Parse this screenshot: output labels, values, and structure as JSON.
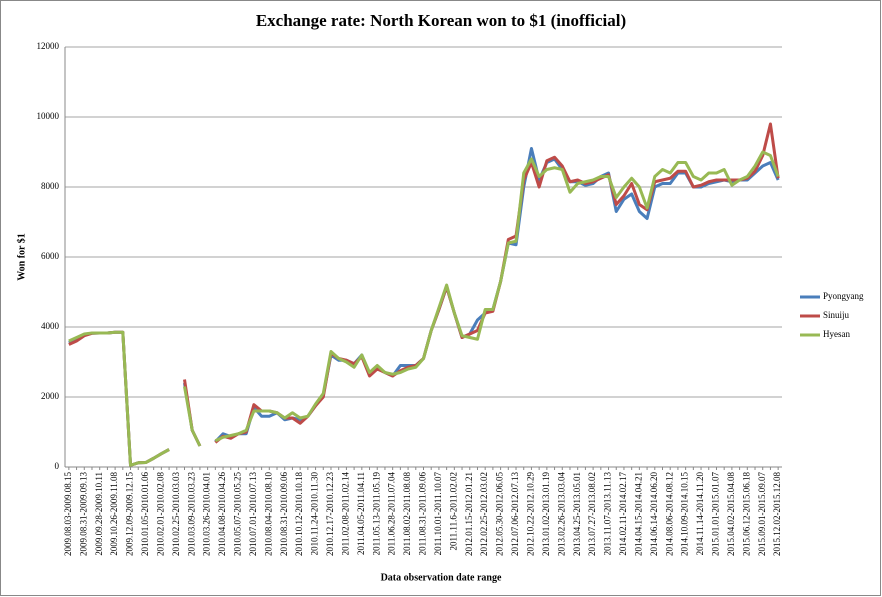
{
  "chart_data": {
    "type": "line",
    "title": "Exchange rate: North Korean won to $1 (inofficial)",
    "x_label": "Data observation date range",
    "y_label": "Won for $1",
    "categories": [
      "2009.08.03-2009.08.15",
      null,
      "2009.08.31-2009.09.13",
      null,
      "2009.09.28-2009.10.11",
      null,
      "2009.10.26-2009.11.08",
      null,
      "2009.12.09-2009.12.15",
      null,
      "2010.01.05-2010.01.06",
      null,
      "2010.02.01-2010.02.08",
      null,
      "2010.02.25-2010.03.03",
      null,
      "2010.03.09-2010.03.23",
      null,
      "2010.03.26-2010.04.01",
      null,
      "2010.04.08-2010.04.26",
      null,
      "2010.05.07-2010.05.25",
      null,
      "2010.07.01-2010.07.13",
      null,
      "2010.08.04-2010.08.10",
      null,
      "2010.08.31-2010.09.06",
      null,
      "2010.10.12-2010.10.18",
      null,
      "2010.11.24-2010.11.30",
      null,
      "2010.12.17-2010.12.23",
      null,
      "2011.02.08-2011.02.14",
      null,
      "2011.04.05-2011.04.11",
      null,
      "2011.05.13-2011.05.19",
      null,
      "2011.06.28-2011.07.04",
      null,
      "2011.08.02-2011.08.08",
      null,
      "2011.08.31-2011.09.06",
      null,
      "2011.10.01-2011.10.07",
      null,
      "2011.11.6-2011.02.02",
      null,
      "2012.01.15-2012.01.21",
      null,
      "2012.02.25-2012.03.02",
      null,
      "2012.05.30-2012.06.05",
      null,
      "2012.07.06-2012.07.13",
      null,
      "2012.10.22-2012.10.29",
      null,
      "2013.01.02-2013.01.19",
      null,
      "2013.02.26-2013.03.04",
      null,
      "2013.04.25-2013.05.01",
      null,
      "2013.07.27-2013.08.02",
      null,
      "2013.11.07-2013.11.13",
      null,
      "2014.02.11-2014.02.17",
      null,
      "2014.04.15-2014.04.21",
      null,
      "2014.06.14-2014.06.20",
      null,
      "2014.08.06-2014.08.12",
      null,
      "2014.10.09-2014.10.15",
      null,
      "2014.11.14-2014.11.20",
      null,
      "2015.01.01-2015.01.07",
      null,
      "2015.04.02-2015.04.08",
      null,
      "2015.06.12-2015.06.18",
      null,
      "2015.09.01-2015.09.07",
      null,
      "2015.12.02-2015.12.08"
    ],
    "series": [
      {
        "name": "Pyongyang",
        "color": "#4a7ebb",
        "values": [
          3550,
          3650,
          3780,
          3820,
          3830,
          3830,
          3850,
          3850,
          50,
          120,
          130,
          250,
          380,
          500,
          null,
          2400,
          1050,
          600,
          null,
          720,
          950,
          870,
          950,
          950,
          1700,
          1450,
          1450,
          1550,
          1350,
          1400,
          1350,
          1450,
          1750,
          2050,
          3200,
          3050,
          3050,
          2950,
          3200,
          2650,
          2850,
          2700,
          2600,
          2900,
          2900,
          2900,
          3100,
          3900,
          4500,
          5150,
          4400,
          3700,
          3800,
          4200,
          4400,
          4500,
          5300,
          6400,
          6350,
          8000,
          9100,
          8200,
          8700,
          8800,
          8500,
          8150,
          8150,
          8050,
          8100,
          8300,
          8400,
          7300,
          7650,
          7800,
          7300,
          7100,
          8000,
          8100,
          8100,
          8400,
          8400,
          8000,
          8000,
          8100,
          8150,
          8200,
          8150,
          8200,
          8200,
          8400,
          8600,
          8700,
          8200
        ]
      },
      {
        "name": "Sinuiju",
        "color": "#be4b48",
        "values": [
          3500,
          3600,
          3750,
          3820,
          3830,
          3830,
          3850,
          3850,
          50,
          120,
          130,
          250,
          380,
          500,
          null,
          2500,
          1050,
          600,
          null,
          700,
          880,
          820,
          950,
          1000,
          1780,
          1600,
          1600,
          1550,
          1400,
          1400,
          1250,
          1450,
          1750,
          2000,
          3250,
          3100,
          3050,
          2950,
          3150,
          2600,
          2800,
          2700,
          2600,
          2750,
          2850,
          2900,
          3100,
          3900,
          4500,
          5150,
          4400,
          3700,
          3800,
          3900,
          4400,
          4450,
          5300,
          6500,
          6600,
          8200,
          8700,
          8000,
          8750,
          8850,
          8600,
          8150,
          8200,
          8100,
          8150,
          8250,
          8350,
          7500,
          7750,
          8100,
          7500,
          7350,
          8150,
          8200,
          8250,
          8450,
          8450,
          8000,
          8050,
          8150,
          8200,
          8200,
          8200,
          8200,
          8250,
          8450,
          8900,
          9800,
          8250
        ]
      },
      {
        "name": "Hyesan",
        "color": "#98b954",
        "values": [
          3600,
          3700,
          3800,
          3830,
          3830,
          3830,
          3850,
          3850,
          50,
          120,
          130,
          250,
          380,
          500,
          null,
          2300,
          1050,
          600,
          null,
          750,
          850,
          900,
          950,
          1050,
          1600,
          1600,
          1600,
          1550,
          1400,
          1550,
          1400,
          1450,
          1800,
          2100,
          3300,
          3100,
          3000,
          2850,
          3200,
          2700,
          2900,
          2700,
          2650,
          2700,
          2800,
          2850,
          3100,
          3900,
          4550,
          5200,
          4400,
          3750,
          3700,
          3650,
          4500,
          4500,
          5300,
          6400,
          6450,
          8400,
          8800,
          8300,
          8500,
          8550,
          8500,
          7850,
          8100,
          8150,
          8200,
          8300,
          8300,
          7700,
          8000,
          8250,
          8000,
          7400,
          8300,
          8500,
          8400,
          8700,
          8700,
          8300,
          8200,
          8400,
          8400,
          8500,
          8050,
          8200,
          8300,
          8600,
          9000,
          8900,
          8300
        ]
      }
    ],
    "ylim": [
      0,
      12000
    ],
    "yticks": [
      0,
      2000,
      4000,
      6000,
      8000,
      10000,
      12000
    ],
    "grid": true,
    "legend": "right"
  }
}
